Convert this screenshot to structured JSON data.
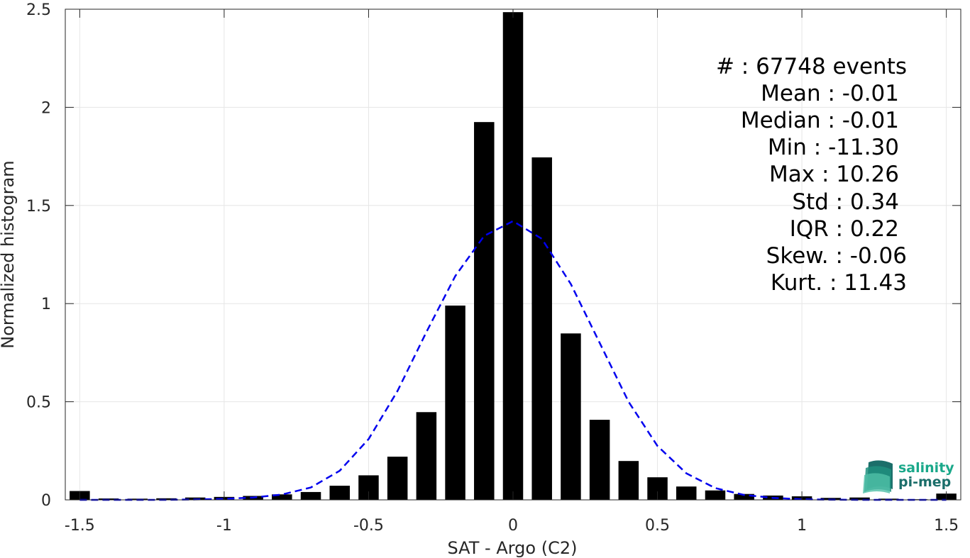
{
  "chart_data": {
    "type": "bar",
    "xlabel": "SAT - Argo (C2)",
    "ylabel": "Normalized histogram",
    "xlim": [
      -1.55,
      1.55
    ],
    "ylim": [
      0,
      2.5
    ],
    "grid": true,
    "x_ticks": [
      "-1.5",
      "-1",
      "-0.5",
      "0",
      "0.5",
      "1",
      "1.5"
    ],
    "x_tick_values": [
      -1.5,
      -1,
      -0.5,
      0,
      0.5,
      1,
      1.5
    ],
    "y_ticks": [
      "0",
      "0.5",
      "1",
      "1.5",
      "2",
      "2.5"
    ],
    "y_tick_values": [
      0,
      0.5,
      1,
      1.5,
      2,
      2.5
    ],
    "bar_width": 0.07,
    "bars": {
      "x": [
        -1.5,
        -1.4,
        -1.3,
        -1.2,
        -1.1,
        -1.0,
        -0.9,
        -0.8,
        -0.7,
        -0.6,
        -0.5,
        -0.4,
        -0.3,
        -0.2,
        -0.1,
        0.0,
        0.1,
        0.2,
        0.3,
        0.4,
        0.5,
        0.6,
        0.7,
        0.8,
        0.9,
        1.0,
        1.1,
        1.2,
        1.3,
        1.4,
        1.5
      ],
      "values": [
        0.045,
        0.007,
        0.006,
        0.008,
        0.012,
        0.015,
        0.02,
        0.028,
        0.04,
        0.072,
        0.125,
        0.22,
        0.447,
        0.99,
        1.925,
        2.485,
        1.745,
        0.848,
        0.408,
        0.198,
        0.115,
        0.068,
        0.048,
        0.03,
        0.022,
        0.018,
        0.01,
        0.012,
        0.006,
        0.003,
        0.032
      ]
    },
    "fit_curve": {
      "style": "dashed",
      "x": [
        -1.5,
        -1.4,
        -1.3,
        -1.2,
        -1.1,
        -1.0,
        -0.9,
        -0.8,
        -0.7,
        -0.6,
        -0.5,
        -0.4,
        -0.3,
        -0.2,
        -0.1,
        0.0,
        0.1,
        0.2,
        0.3,
        0.4,
        0.5,
        0.6,
        0.7,
        0.8,
        0.9,
        1.0,
        1.1,
        1.2,
        1.3,
        1.4,
        1.5
      ],
      "values": [
        0.0,
        0.0,
        0.0,
        0.0,
        0.002,
        0.005,
        0.012,
        0.027,
        0.063,
        0.148,
        0.31,
        0.555,
        0.855,
        1.14,
        1.345,
        1.42,
        1.33,
        1.1,
        0.8,
        0.5,
        0.275,
        0.135,
        0.06,
        0.025,
        0.01,
        0.003,
        0.001,
        0.0,
        0.0,
        0.0,
        0.0
      ]
    },
    "annotations": {
      "count": "#  : 67748 events",
      "mean": "Mean : -0.01",
      "median": "Median : -0.01",
      "min": "Min : -11.30",
      "max": "Max : 10.26",
      "std": "Std : 0.34",
      "iqr": "IQR : 0.22",
      "skew": "Skew. : -0.06",
      "kurt": "Kurt. : 11.43"
    }
  },
  "logo": {
    "line1": "salinity",
    "line2": "pi-mep"
  },
  "colors": {
    "bars": "#000000",
    "fit_curve": "#0000ee",
    "grid": "#e6e6e6",
    "axes": "#262626",
    "logo_teal": "#1aa88a",
    "logo_dark": "#1b6e6a"
  }
}
